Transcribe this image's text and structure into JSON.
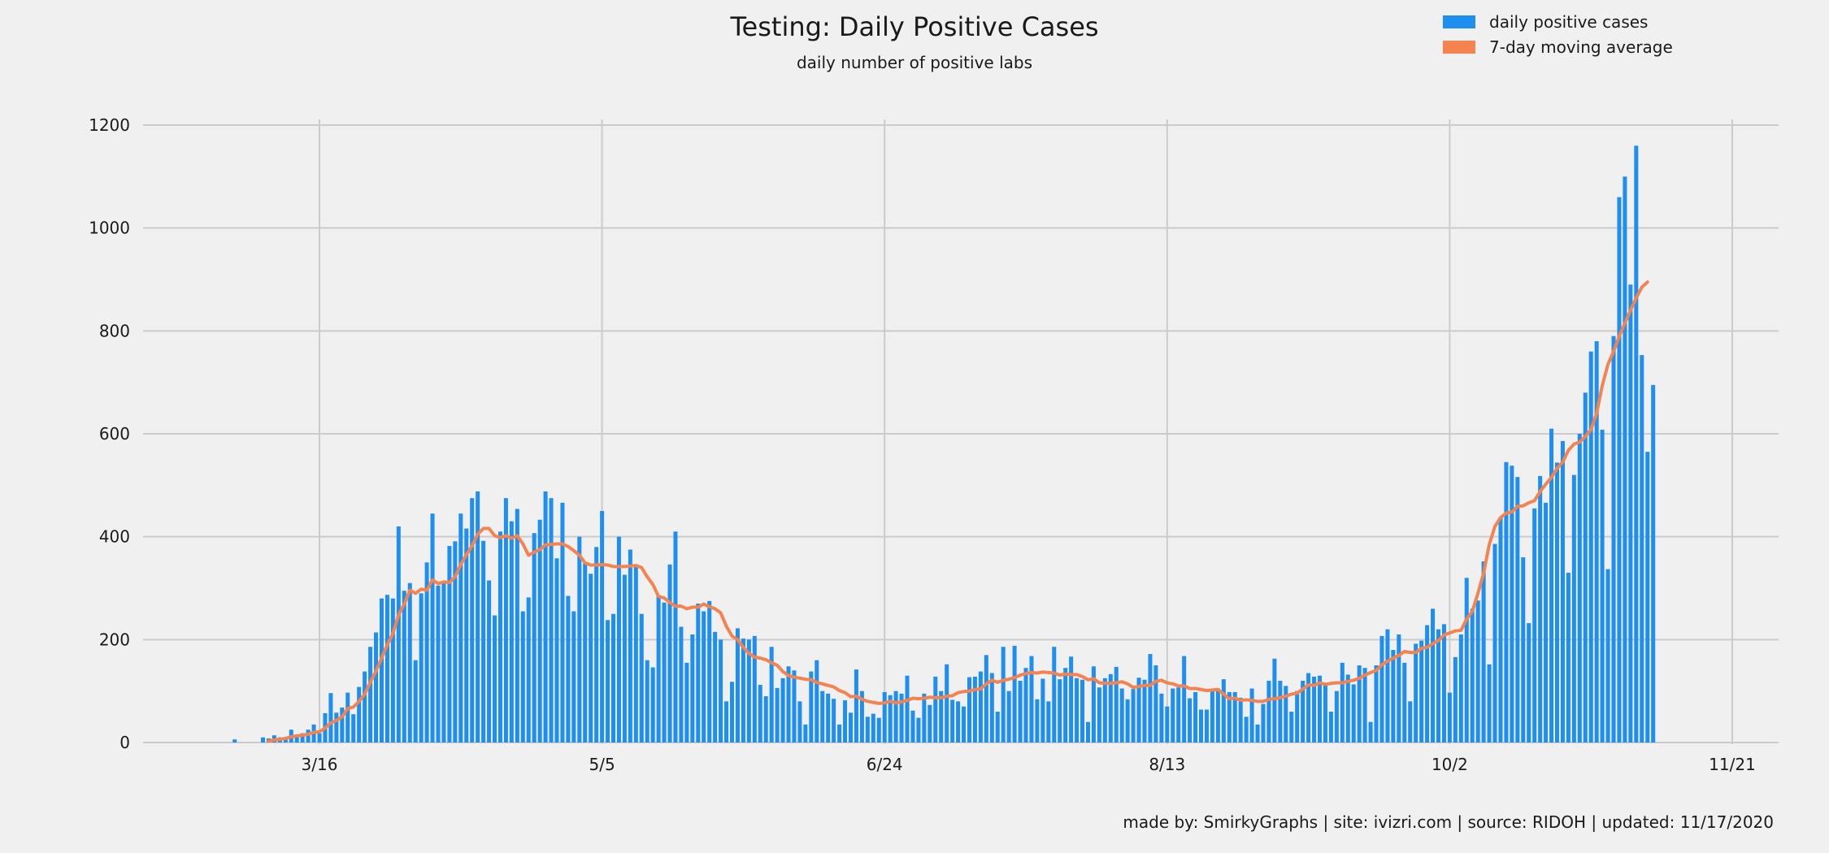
{
  "chart_data": {
    "type": "bar",
    "title": "Testing: Daily Positive Cases",
    "subtitle": "daily number of positive labs",
    "xlabel": "",
    "ylabel": "",
    "ylim": [
      0,
      1200
    ],
    "yticks": [
      0,
      200,
      400,
      600,
      800,
      1000,
      1200
    ],
    "xlim": [
      "2020-02-25",
      "2020-11-21"
    ],
    "x_start": "2020-03-01",
    "xticks": [
      {
        "date": "2020-03-16",
        "label": "3/16"
      },
      {
        "date": "2020-05-05",
        "label": "5/5"
      },
      {
        "date": "2020-06-24",
        "label": "6/24"
      },
      {
        "date": "2020-08-13",
        "label": "8/13"
      },
      {
        "date": "2020-10-02",
        "label": "10/2"
      },
      {
        "date": "2020-11-21",
        "label": "11/21"
      }
    ],
    "grid": true,
    "legend_position": "top-right",
    "colors": {
      "bars": "#1f8ef1",
      "line": "#f4834f",
      "background": "#f0f0f0",
      "grid": "#cbcbcb"
    },
    "series": [
      {
        "name": "daily positive cases",
        "type": "bar",
        "values": [
          6,
          0,
          0,
          0,
          0,
          10,
          8,
          14,
          10,
          10,
          25,
          14,
          18,
          25,
          35,
          18,
          57,
          96,
          58,
          68,
          97,
          55,
          108,
          138,
          186,
          214,
          280,
          287,
          280,
          420,
          295,
          310,
          160,
          290,
          350,
          445,
          305,
          310,
          382,
          391,
          445,
          416,
          475,
          488,
          392,
          315,
          247,
          410,
          475,
          430,
          454,
          255,
          282,
          407,
          433,
          488,
          475,
          358,
          466,
          285,
          255,
          400,
          348,
          328,
          380,
          450,
          238,
          250,
          400,
          326,
          375,
          345,
          250,
          160,
          146,
          285,
          272,
          346,
          410,
          225,
          155,
          210,
          270,
          255,
          275,
          215,
          200,
          80,
          118,
          222,
          202,
          200,
          207,
          112,
          90,
          186,
          106,
          125,
          148,
          140,
          80,
          35,
          138,
          160,
          100,
          95,
          85,
          35,
          82,
          58,
          142,
          100,
          50,
          56,
          48,
          98,
          92,
          100,
          95,
          130,
          62,
          48,
          95,
          73,
          128,
          100,
          152,
          83,
          80,
          70,
          127,
          128,
          138,
          170,
          135,
          60,
          186,
          100,
          188,
          120,
          145,
          168,
          84,
          124,
          80,
          186,
          123,
          145,
          167,
          125,
          122,
          40,
          148,
          107,
          125,
          133,
          147,
          105,
          84,
          104,
          126,
          122,
          172,
          150,
          95,
          70,
          105,
          107,
          168,
          86,
          98,
          64,
          64,
          100,
          105,
          123,
          98,
          98,
          87,
          50,
          105,
          35,
          75,
          120,
          163,
          120,
          110,
          60,
          100,
          120,
          135,
          128,
          130,
          113,
          60,
          100,
          155,
          132,
          113,
          150,
          145,
          40,
          150,
          207,
          220,
          180,
          210,
          155,
          80,
          192,
          198,
          228,
          260,
          220,
          230,
          97,
          166,
          210,
          320,
          260,
          276,
          352,
          152,
          386,
          438,
          545,
          538,
          516,
          360,
          232,
          455,
          518,
          466,
          610,
          544,
          586,
          330,
          520,
          600,
          680,
          760,
          780,
          608,
          337,
          790,
          1060,
          1100,
          890,
          1160,
          753,
          565,
          695
        ]
      },
      {
        "name": "7-day moving average",
        "type": "line",
        "values": [
          null,
          null,
          null,
          null,
          null,
          null,
          3,
          5,
          6,
          8,
          11,
          13,
          14,
          16,
          20,
          21,
          28,
          38,
          43,
          50,
          66,
          69,
          80,
          94,
          117,
          139,
          164,
          190,
          212,
          248,
          269,
          296,
          290,
          298,
          296,
          316,
          309,
          312,
          311,
          322,
          346,
          365,
          382,
          405,
          416,
          416,
          402,
          398,
          402,
          397,
          402,
          386,
          364,
          370,
          375,
          384,
          385,
          386,
          386,
          381,
          373,
          364,
          349,
          345,
          345,
          346,
          345,
          342,
          342,
          342,
          343,
          344,
          340,
          322,
          307,
          284,
          281,
          272,
          265,
          265,
          260,
          263,
          263,
          269,
          264,
          260,
          252,
          226,
          207,
          200,
          185,
          173,
          166,
          164,
          161,
          155,
          150,
          138,
          130,
          127,
          125,
          123,
          122,
          117,
          114,
          111,
          108,
          101,
          97,
          89,
          90,
          84,
          80,
          78,
          76,
          77,
          80,
          77,
          79,
          82,
          86,
          85,
          86,
          88,
          87,
          87,
          90,
          91,
          97,
          99,
          100,
          103,
          104,
          114,
          121,
          117,
          121,
          123,
          126,
          131,
          134,
          136,
          135,
          137,
          136,
          135,
          131,
          133,
          132,
          132,
          128,
          122,
          124,
          116,
          115,
          115,
          116,
          118,
          114,
          107,
          109,
          111,
          111,
          119,
          121,
          116,
          114,
          110,
          110,
          105,
          105,
          103,
          101,
          102,
          103,
          94,
          85,
          86,
          82,
          83,
          82,
          80,
          80,
          84,
          85,
          87,
          90,
          94,
          96,
          104,
          112,
          111,
          116,
          113,
          115,
          116,
          116,
          119,
          121,
          125,
          131,
          136,
          140,
          151,
          158,
          164,
          169,
          177,
          175,
          175,
          183,
          185,
          192,
          198,
          209,
          213,
          217,
          218,
          240,
          255,
          290,
          329,
          385,
          420,
          437,
          446,
          448,
          459,
          460,
          466,
          470,
          488,
          502,
          515,
          533,
          545,
          568,
          580,
          584,
          595,
          608,
          640,
          694,
          735,
          760,
          790,
          815,
          840,
          864,
          885,
          895
        ]
      }
    ]
  },
  "legend": {
    "items": [
      {
        "label": "daily positive cases",
        "color": "#1f8ef1"
      },
      {
        "label": "7-day moving average",
        "color": "#f4834f"
      }
    ]
  },
  "footer": {
    "text": "made by: SmirkyGraphs  |  site: ivizri.com  |  source: RIDOH  |  updated: 11/17/2020"
  }
}
